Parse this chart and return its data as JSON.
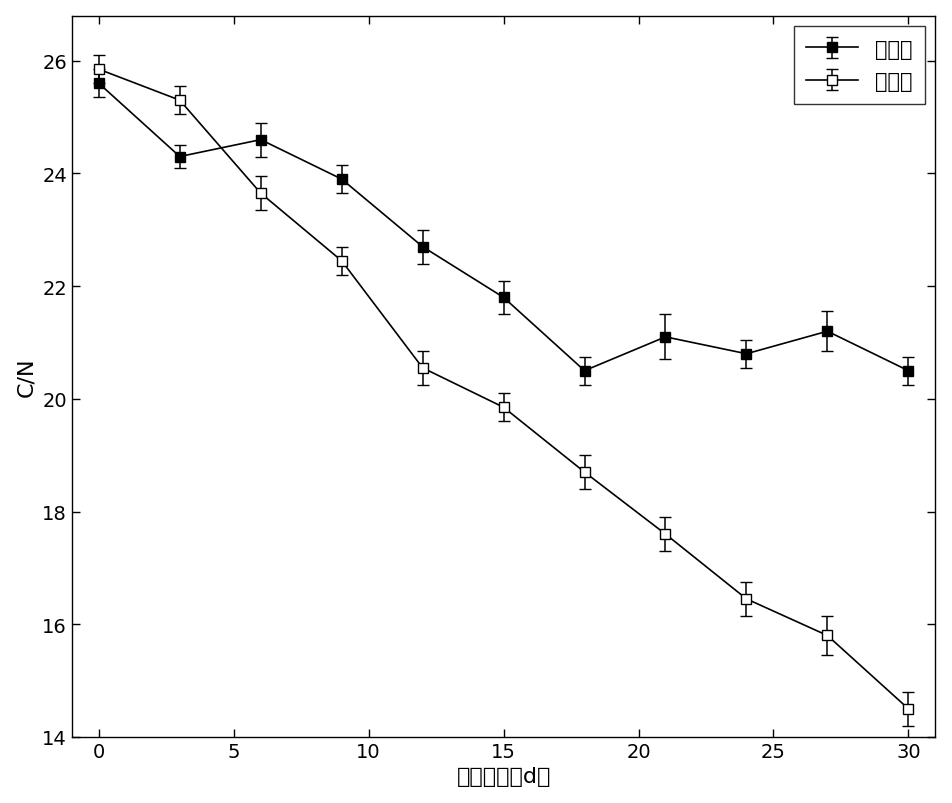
{
  "x": [
    0,
    3,
    6,
    9,
    12,
    15,
    18,
    21,
    24,
    27,
    30
  ],
  "control_y": [
    25.6,
    24.3,
    24.6,
    23.9,
    22.7,
    21.8,
    20.5,
    21.1,
    20.8,
    21.2,
    20.5
  ],
  "control_yerr": [
    0.25,
    0.2,
    0.3,
    0.25,
    0.3,
    0.3,
    0.25,
    0.4,
    0.25,
    0.35,
    0.25
  ],
  "experiment_y": [
    25.85,
    25.3,
    23.65,
    22.45,
    20.55,
    19.85,
    18.7,
    17.6,
    16.45,
    15.8,
    14.5
  ],
  "experiment_yerr": [
    0.25,
    0.25,
    0.3,
    0.25,
    0.3,
    0.25,
    0.3,
    0.3,
    0.3,
    0.35,
    0.3
  ],
  "xlabel": "堆肥时间（d）",
  "ylabel": "C/N",
  "xlim": [
    -1,
    31
  ],
  "ylim": [
    14,
    26.8
  ],
  "yticks": [
    14,
    16,
    18,
    20,
    22,
    24,
    26
  ],
  "xticks": [
    0,
    5,
    10,
    15,
    20,
    25,
    30
  ],
  "legend_control": "对照组",
  "legend_experiment": "实验组",
  "line_color": "#000000",
  "bg_color": "#ffffff",
  "label_fontsize": 16,
  "tick_fontsize": 14,
  "legend_fontsize": 15
}
